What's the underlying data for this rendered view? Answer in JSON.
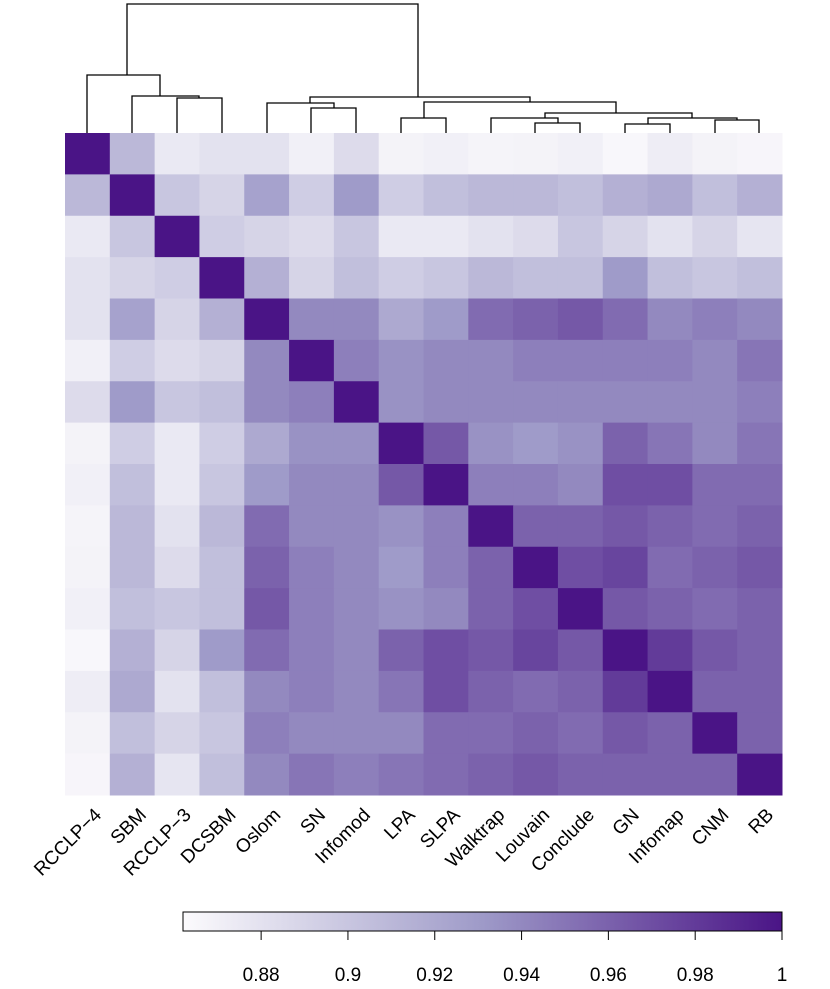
{
  "chart_data": {
    "type": "heatmap",
    "categories": [
      "RCCLP−4",
      "SBM",
      "RCCLP−3",
      "DCSBM",
      "Oslom",
      "SN",
      "Infomod",
      "LPA",
      "SLPA",
      "Walktrap",
      "Louvain",
      "Conclude",
      "GN",
      "Infomap",
      "CNM",
      "RB"
    ],
    "values": [
      [
        1,
        0.91,
        0.875,
        0.88,
        0.88,
        0.87,
        0.885,
        0.868,
        0.87,
        0.867,
        0.868,
        0.87,
        0.865,
        0.872,
        0.868,
        0.866
      ],
      [
        0.91,
        1,
        0.9,
        0.89,
        0.925,
        0.895,
        0.93,
        0.895,
        0.905,
        0.91,
        0.91,
        0.905,
        0.915,
        0.92,
        0.905,
        0.915
      ],
      [
        0.875,
        0.9,
        1,
        0.895,
        0.89,
        0.885,
        0.9,
        0.875,
        0.875,
        0.88,
        0.885,
        0.9,
        0.89,
        0.88,
        0.89,
        0.878
      ],
      [
        0.88,
        0.89,
        0.895,
        1,
        0.915,
        0.89,
        0.905,
        0.895,
        0.9,
        0.91,
        0.905,
        0.905,
        0.93,
        0.905,
        0.9,
        0.905
      ],
      [
        0.88,
        0.925,
        0.89,
        0.915,
        1,
        0.94,
        0.94,
        0.92,
        0.93,
        0.955,
        0.96,
        0.965,
        0.955,
        0.94,
        0.945,
        0.94
      ],
      [
        0.87,
        0.895,
        0.885,
        0.89,
        0.94,
        1,
        0.945,
        0.935,
        0.94,
        0.94,
        0.945,
        0.945,
        0.945,
        0.945,
        0.94,
        0.95
      ],
      [
        0.885,
        0.93,
        0.9,
        0.905,
        0.94,
        0.945,
        1,
        0.935,
        0.94,
        0.94,
        0.94,
        0.94,
        0.94,
        0.94,
        0.94,
        0.945
      ],
      [
        0.868,
        0.895,
        0.875,
        0.895,
        0.92,
        0.935,
        0.935,
        1,
        0.965,
        0.935,
        0.93,
        0.935,
        0.96,
        0.95,
        0.94,
        0.95
      ],
      [
        0.87,
        0.905,
        0.875,
        0.9,
        0.93,
        0.94,
        0.94,
        0.965,
        1,
        0.945,
        0.945,
        0.94,
        0.97,
        0.97,
        0.955,
        0.955
      ],
      [
        0.867,
        0.91,
        0.88,
        0.91,
        0.955,
        0.94,
        0.94,
        0.935,
        0.945,
        1,
        0.96,
        0.96,
        0.965,
        0.96,
        0.955,
        0.96
      ],
      [
        0.868,
        0.91,
        0.885,
        0.905,
        0.96,
        0.945,
        0.94,
        0.93,
        0.945,
        0.96,
        1,
        0.97,
        0.975,
        0.955,
        0.96,
        0.965
      ],
      [
        0.87,
        0.905,
        0.9,
        0.905,
        0.965,
        0.945,
        0.94,
        0.935,
        0.94,
        0.96,
        0.97,
        1,
        0.965,
        0.96,
        0.955,
        0.96
      ],
      [
        0.865,
        0.915,
        0.89,
        0.93,
        0.955,
        0.945,
        0.94,
        0.96,
        0.97,
        0.965,
        0.975,
        0.965,
        1,
        0.98,
        0.965,
        0.96
      ],
      [
        0.872,
        0.92,
        0.88,
        0.905,
        0.94,
        0.945,
        0.94,
        0.95,
        0.97,
        0.96,
        0.955,
        0.96,
        0.98,
        1,
        0.96,
        0.96
      ],
      [
        0.868,
        0.905,
        0.89,
        0.9,
        0.945,
        0.94,
        0.94,
        0.94,
        0.955,
        0.955,
        0.96,
        0.955,
        0.965,
        0.96,
        1,
        0.96
      ],
      [
        0.866,
        0.915,
        0.878,
        0.905,
        0.94,
        0.95,
        0.945,
        0.95,
        0.955,
        0.96,
        0.965,
        0.96,
        0.96,
        0.96,
        0.96,
        1
      ]
    ],
    "colorscale": [
      "#fcfbfd",
      "#9e9ac8",
      "#4a1486"
    ],
    "colorbar_lim": [
      0.862,
      1
    ],
    "colorbar_ticks": [
      0.88,
      0.9,
      0.92,
      0.94,
      0.96,
      0.98,
      1
    ]
  }
}
